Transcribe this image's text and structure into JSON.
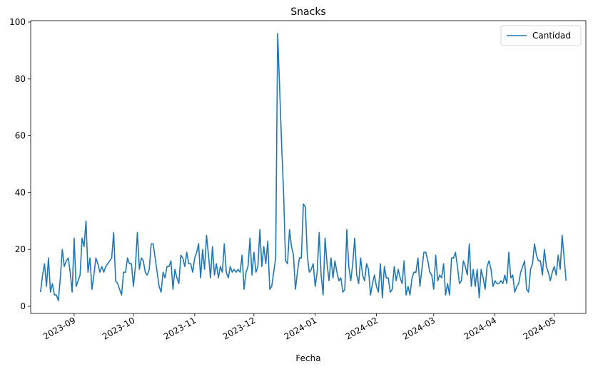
{
  "chart_data": {
    "type": "line",
    "title": "Snacks",
    "xlabel": "Fecha",
    "ylabel": "",
    "ylim": [
      -2.5,
      100.5
    ],
    "xlim": [
      "2023-08-10",
      "2024-05-17"
    ],
    "yticks": [
      0,
      20,
      40,
      60,
      80,
      100
    ],
    "xticks": [
      "2023-09",
      "2023-10",
      "2023-11",
      "2023-12",
      "2024-01",
      "2024-02",
      "2024-03",
      "2024-04",
      "2024-05"
    ],
    "x_start": "2023-08-15",
    "grid": false,
    "legend_position": "top-right",
    "series": [
      {
        "name": "Cantidad",
        "color": "#1f77b4",
        "values": [
          5,
          11,
          15,
          7,
          17,
          5,
          8,
          4,
          4,
          2,
          10,
          20,
          14,
          16,
          17,
          12,
          5,
          24,
          7,
          9,
          11,
          24,
          21,
          30,
          12,
          17,
          6,
          11,
          17,
          15,
          12,
          14,
          12,
          14,
          15,
          16,
          17,
          26,
          9,
          8,
          6,
          4,
          12,
          12,
          17,
          15,
          15,
          7,
          14,
          26,
          13,
          17,
          16,
          12,
          11,
          13,
          22,
          22,
          17,
          12,
          7,
          5,
          12,
          10,
          14,
          14,
          16,
          6,
          13,
          10,
          8,
          18,
          17,
          14,
          19,
          15,
          15,
          12,
          17,
          19,
          22,
          10,
          20,
          13,
          25,
          18,
          10,
          21,
          11,
          15,
          10,
          14,
          12,
          22,
          12,
          10,
          14,
          12,
          13,
          12,
          13,
          12,
          18,
          6,
          12,
          14,
          24,
          11,
          19,
          12,
          14,
          27,
          14,
          21,
          15,
          23,
          6,
          7,
          12,
          17,
          96,
          77,
          57,
          40,
          16,
          15,
          27,
          21,
          18,
          6,
          12,
          17,
          17,
          36,
          35,
          18,
          12,
          13,
          15,
          7,
          12,
          26,
          11,
          4,
          24,
          15,
          9,
          17,
          10,
          16,
          12,
          9,
          10,
          5,
          6,
          27,
          14,
          9,
          15,
          24,
          11,
          8,
          17,
          11,
          9,
          15,
          13,
          4,
          8,
          11,
          7,
          5,
          15,
          3,
          14,
          10,
          10,
          5,
          6,
          14,
          9,
          13,
          10,
          8,
          16,
          4,
          7,
          4,
          10,
          12,
          12,
          17,
          7,
          13,
          19,
          19,
          16,
          12,
          11,
          6,
          18,
          9,
          11,
          10,
          15,
          4,
          8,
          4,
          17,
          17,
          19,
          14,
          8,
          9,
          16,
          14,
          11,
          22,
          7,
          13,
          7,
          13,
          3,
          13,
          10,
          6,
          14,
          16,
          13,
          7,
          9,
          8,
          8,
          9,
          8,
          11,
          8,
          19,
          10,
          11,
          5,
          7,
          8,
          12,
          14,
          16,
          6,
          5,
          13,
          15,
          22,
          18,
          16,
          16,
          11,
          20,
          14,
          12,
          9,
          12,
          14,
          11,
          18,
          13,
          25,
          17,
          9
        ]
      }
    ]
  }
}
